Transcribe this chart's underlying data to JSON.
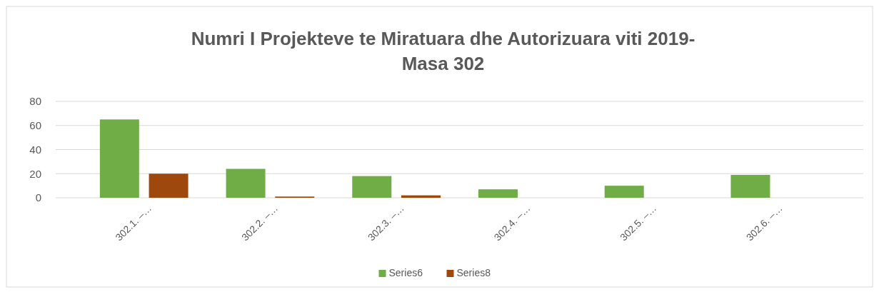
{
  "chart_data": {
    "type": "bar",
    "title": "Numri I Projekteve te Miratuara dhe Autorizuara viti 2019-Masa 302",
    "categories": [
      "302.1. –…",
      "302.2. –…",
      "302.3. –…",
      "302.4. –…",
      "302.5. –…",
      "302.6. –…"
    ],
    "series": [
      {
        "name": "Series6",
        "color": "#70ad47",
        "values": [
          65,
          24,
          18,
          7,
          10,
          19
        ]
      },
      {
        "name": "Series8",
        "color": "#9e480e",
        "values": [
          20,
          1,
          2,
          null,
          null,
          null
        ]
      }
    ],
    "ylim": [
      0,
      80
    ],
    "yticks": [
      0,
      20,
      40,
      60,
      80
    ],
    "grid": "y",
    "legend": "bottom"
  }
}
